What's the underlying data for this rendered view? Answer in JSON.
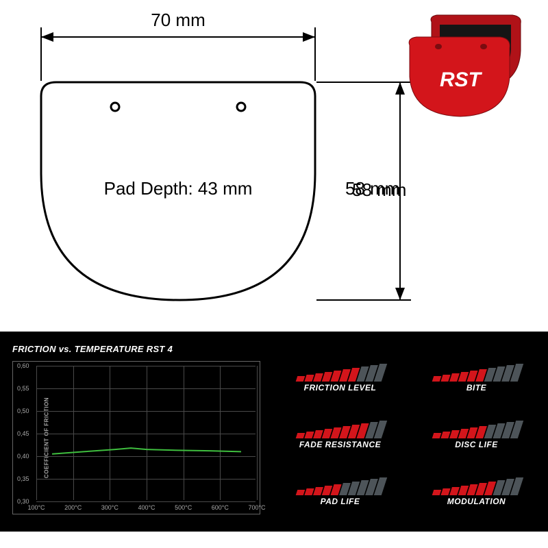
{
  "dimensions": {
    "width_label": "70 mm",
    "height_label": "58 mm",
    "depth_label": "Pad Depth: 43 mm",
    "font_size": 22,
    "stroke_color": "#000000",
    "stroke_width": 2
  },
  "pad_shape": {
    "outline_color": "#000000",
    "outline_width": 3
  },
  "product": {
    "body_color": "#d3151b",
    "friction_color": "#1a1a1a",
    "logo_text": "RST",
    "logo_color": "#ffffff"
  },
  "chart": {
    "title": "FRICTION vs. TEMPERATURE RST 4",
    "ylabel": "COEFFICIENT OF FRICTION",
    "yticks": [
      "0,60",
      "0,55",
      "0,50",
      "0,45",
      "0,40",
      "0,35",
      "0,30"
    ],
    "xticks": [
      "100°C",
      "200°C",
      "300°C",
      "400°C",
      "500°C",
      "600°C",
      "700°C"
    ],
    "line_color": "#3fbf3f",
    "line_points": [
      {
        "x": 100,
        "y": 0.405
      },
      {
        "x": 200,
        "y": 0.41
      },
      {
        "x": 300,
        "y": 0.415
      },
      {
        "x": 350,
        "y": 0.418
      },
      {
        "x": 400,
        "y": 0.415
      },
      {
        "x": 500,
        "y": 0.413
      },
      {
        "x": 600,
        "y": 0.412
      },
      {
        "x": 700,
        "y": 0.41
      }
    ],
    "xlim": [
      50,
      750
    ],
    "ylim": [
      0.3,
      0.6
    ],
    "grid_color": "#4a4a4a",
    "text_color": "#aaaaaa",
    "border_color": "#666666",
    "background": "#000000"
  },
  "ratings": {
    "bar_total": 10,
    "bar_color_filled": "#d3151b",
    "bar_color_empty": "#4d5459",
    "items": [
      {
        "label": "FRICTION LEVEL",
        "value": 7
      },
      {
        "label": "BITE",
        "value": 6
      },
      {
        "label": "FADE RESISTANCE",
        "value": 8
      },
      {
        "label": "DISC LIFE",
        "value": 6
      },
      {
        "label": "PAD LIFE",
        "value": 5
      },
      {
        "label": "MODULATION",
        "value": 7
      }
    ]
  }
}
